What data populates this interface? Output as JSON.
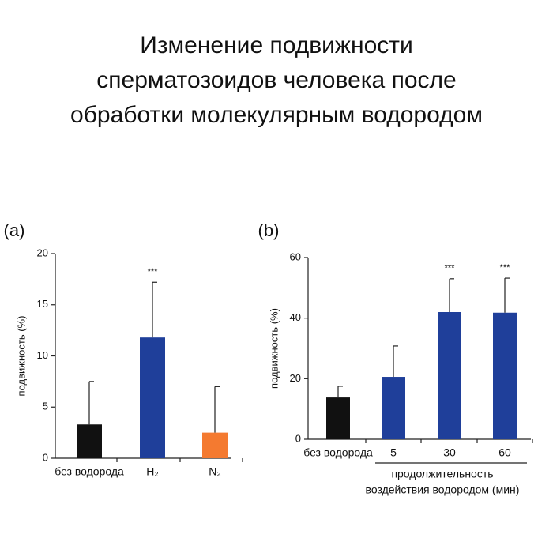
{
  "title": "Изменение подвижности сперматозоидов человека после обработки молекулярным водородом",
  "chart_data": [
    {
      "type": "bar",
      "label": "(a)",
      "ylabel": "подвижность (%)",
      "categories": [
        "без водорода",
        "H₂",
        "N₂"
      ],
      "values": [
        3.3,
        11.8,
        2.5
      ],
      "errors": [
        4.2,
        5.4,
        4.5
      ],
      "colors": [
        "#111111",
        "#1f3f9a",
        "#f47a30"
      ],
      "annotations": [
        null,
        "***",
        null
      ],
      "ylim": [
        0,
        20
      ],
      "yticks": [
        0,
        5,
        10,
        15,
        20
      ]
    },
    {
      "type": "bar",
      "label": "(b)",
      "ylabel": "подвижность (%)",
      "categories": [
        "без водорода",
        "5",
        "30",
        "60"
      ],
      "values": [
        13.8,
        20.6,
        42.0,
        41.8
      ],
      "errors": [
        3.7,
        10.2,
        11.0,
        11.4
      ],
      "colors": [
        "#111111",
        "#1f3f9a",
        "#1f3f9a",
        "#1f3f9a"
      ],
      "annotations": [
        null,
        null,
        "***",
        "***"
      ],
      "xlabel": [
        "продолжительность",
        "воздействия водородом (мин)"
      ],
      "ylim": [
        0,
        60
      ],
      "yticks": [
        0,
        20,
        40,
        60
      ]
    }
  ]
}
